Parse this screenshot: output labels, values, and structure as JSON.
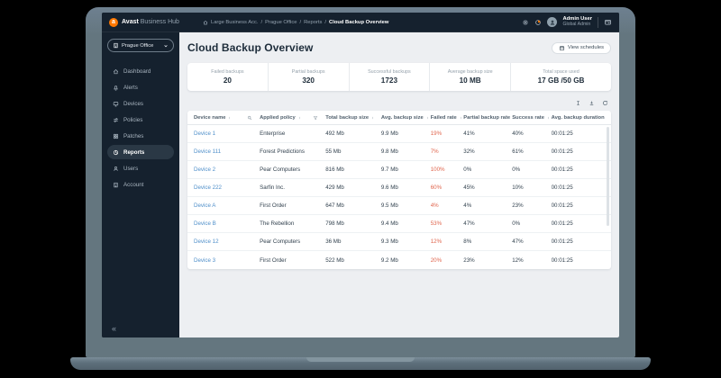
{
  "topbar": {
    "brand_bold": "Avast",
    "brand_light": "Business Hub",
    "breadcrumb": [
      "Large Business Acc.",
      "Prague Office",
      "Reports",
      "Cloud Backup Overview"
    ],
    "breadcrumb_separator": "/",
    "user_name": "Admin User",
    "user_role": "Global Admin",
    "logo_letter": "a"
  },
  "sidebar": {
    "site_selector": "Prague Office",
    "items": [
      {
        "label": "Dashboard",
        "icon": "home"
      },
      {
        "label": "Alerts",
        "icon": "bell"
      },
      {
        "label": "Devices",
        "icon": "monitor"
      },
      {
        "label": "Policies",
        "icon": "sliders"
      },
      {
        "label": "Patches",
        "icon": "patch-grid"
      },
      {
        "label": "Reports",
        "icon": "pie-chart",
        "active": true
      },
      {
        "label": "Users",
        "icon": "user"
      },
      {
        "label": "Account",
        "icon": "building"
      }
    ],
    "collapse_glyph": "«"
  },
  "page": {
    "title": "Cloud Backup Overview",
    "view_schedules_label": "View schedules"
  },
  "stats": [
    {
      "label": "Failed backups",
      "value": "20"
    },
    {
      "label": "Partial backups",
      "value": "320"
    },
    {
      "label": "Successful backups",
      "value": "1723"
    },
    {
      "label": "Average backup size",
      "value": "10 MB"
    },
    {
      "label": "Total space used",
      "value": "17 GB /50 GB"
    }
  ],
  "table": {
    "columns": [
      "Device name",
      "Applied policy",
      "Total backup size",
      "Avg. backup size",
      "Failed rate",
      "Partial backup rate",
      "Success rate",
      "Avg. backup duration"
    ],
    "rows": [
      [
        "Device 1",
        "Enterprise",
        "492 Mb",
        "9.9 Mb",
        "19%",
        "41%",
        "40%",
        "00:01:25"
      ],
      [
        "Device 111",
        "Forest Predictions",
        "55 Mb",
        "9.8 Mb",
        "7%",
        "32%",
        "61%",
        "00:01:25"
      ],
      [
        "Device 2",
        "Pear Computers",
        "816 Mb",
        "9.7 Mb",
        "100%",
        "0%",
        "0%",
        "00:01:25"
      ],
      [
        "Device 222",
        "Sarfin Inc.",
        "429 Mb",
        "9.6 Mb",
        "60%",
        "45%",
        "10%",
        "00:01:25"
      ],
      [
        "Device A",
        "First Order",
        "647 Mb",
        "9.5 Mb",
        "4%",
        "4%",
        "23%",
        "00:01:25"
      ],
      [
        "Device B",
        "The Rebellion",
        "798 Mb",
        "9.4 Mb",
        "53%",
        "47%",
        "0%",
        "00:01:25"
      ],
      [
        "Device 12",
        "Pear Computers",
        "36 Mb",
        "9.3 Mb",
        "12%",
        "8%",
        "47%",
        "00:01:25"
      ],
      [
        "Device 3",
        "First Order",
        "522 Mb",
        "9.2 Mb",
        "20%",
        "23%",
        "12%",
        "00:01:25"
      ]
    ]
  },
  "colors": {
    "accent_orange": "#FF7800",
    "navy": "#15212E",
    "link_blue": "#4F8FCA",
    "failed_red": "#E0654D",
    "main_bg": "#EDEFF2",
    "laptop_body": "#64767F"
  }
}
